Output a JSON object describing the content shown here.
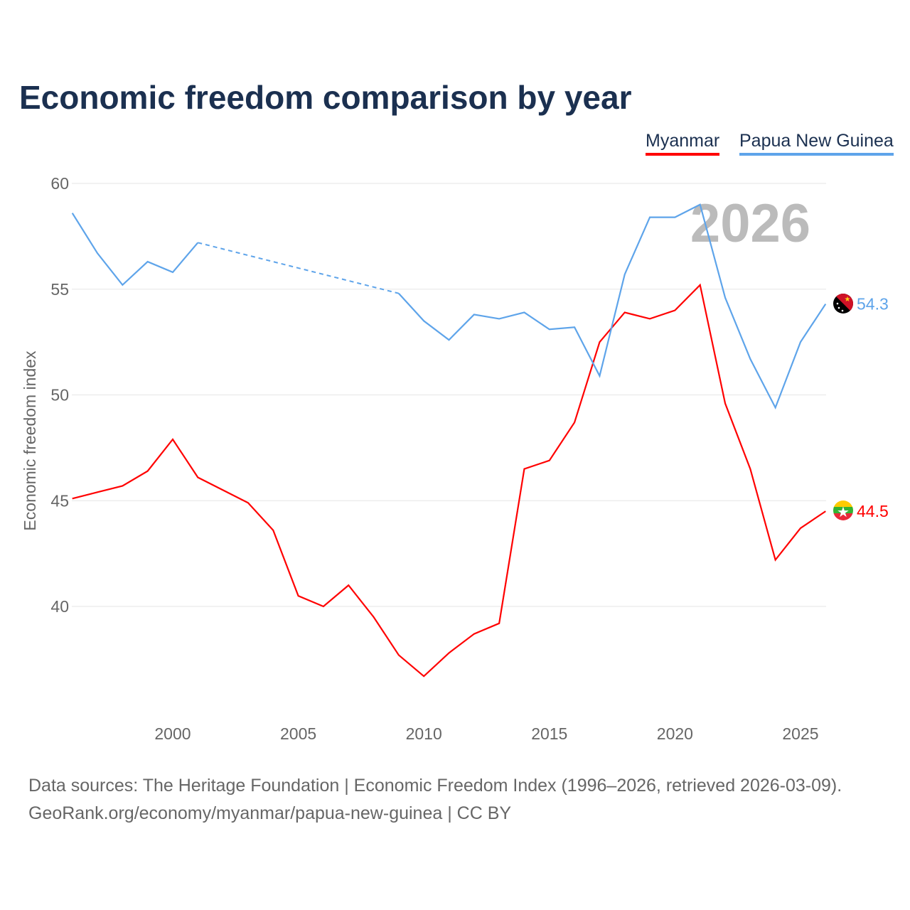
{
  "title": "Economic freedom comparison by year",
  "legend": [
    "Myanmar",
    "Papua New Guinea"
  ],
  "watermark_year": "2026",
  "source_line1": "Data sources: The Heritage Foundation | Economic Freedom Index (1996–2026, retrieved 2026-03-09).",
  "source_line2": "GeoRank.org/economy/myanmar/papua-new-guinea | CC BY",
  "chart_data": {
    "type": "line",
    "title": "Economic freedom comparison by year",
    "xlabel": "",
    "ylabel": "Economic freedom index",
    "xlim": [
      1996,
      2026
    ],
    "ylim": [
      35,
      60
    ],
    "xticks": [
      2000,
      2005,
      2010,
      2015,
      2020,
      2025
    ],
    "yticks": [
      40,
      45,
      50,
      55,
      60
    ],
    "grid": true,
    "legend_position": "top-right",
    "x": [
      1996,
      1997,
      1998,
      1999,
      2000,
      2001,
      2002,
      2003,
      2004,
      2005,
      2006,
      2007,
      2008,
      2009,
      2010,
      2011,
      2012,
      2013,
      2014,
      2015,
      2016,
      2017,
      2018,
      2019,
      2020,
      2021,
      2022,
      2023,
      2024,
      2025,
      2026
    ],
    "series": [
      {
        "name": "Myanmar",
        "color": "#ff0000",
        "end_label": "44.5",
        "values": [
          45.1,
          45.4,
          45.7,
          46.4,
          47.9,
          46.1,
          45.5,
          44.9,
          43.6,
          40.5,
          40.0,
          41.0,
          39.5,
          37.7,
          36.7,
          37.8,
          38.7,
          39.2,
          46.5,
          46.9,
          48.7,
          52.5,
          53.9,
          53.6,
          54.0,
          55.2,
          49.6,
          46.5,
          42.2,
          43.7,
          44.5
        ]
      },
      {
        "name": "Papua New Guinea",
        "color": "#5ea4ea",
        "end_label": "54.3",
        "values": [
          58.6,
          56.7,
          55.2,
          56.3,
          55.8,
          57.2,
          null,
          null,
          null,
          null,
          null,
          null,
          null,
          54.8,
          53.5,
          52.6,
          53.8,
          53.6,
          53.9,
          53.1,
          53.2,
          50.9,
          55.7,
          58.4,
          58.4,
          59.0,
          54.6,
          51.7,
          49.4,
          52.5,
          54.3
        ]
      }
    ]
  }
}
